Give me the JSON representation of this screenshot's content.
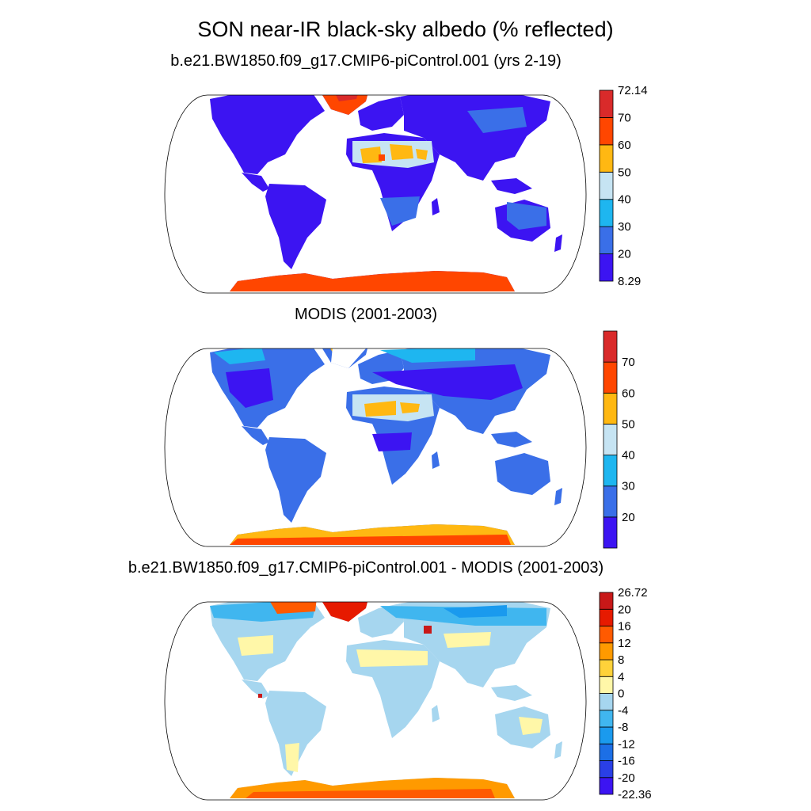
{
  "figure": {
    "title": "SON near-IR black-sky albedo (% reflected)"
  },
  "panels": [
    {
      "title": "b.e21.BW1850.f09_g17.CMIP6-piControl.001 (yrs 2-19)",
      "colorbar": {
        "colors": [
          "#3c14f2",
          "#3a6fe8",
          "#1eb6f0",
          "#c6e4f3",
          "#ffb812",
          "#ff4600",
          "#d92a2a"
        ],
        "labels": [
          "8.29",
          "20",
          "30",
          "40",
          "50",
          "60",
          "70",
          "72.14"
        ],
        "min_label": "8.29",
        "max_label": "72.14"
      }
    },
    {
      "title": "MODIS (2001-2003)",
      "colorbar": {
        "colors": [
          "#3c14f2",
          "#3a6fe8",
          "#1eb6f0",
          "#c6e4f3",
          "#ffb812",
          "#ff4600",
          "#d92a2a"
        ],
        "labels": [
          "20",
          "30",
          "40",
          "50",
          "60",
          "70"
        ]
      }
    },
    {
      "title": "b.e21.BW1850.f09_g17.CMIP6-piControl.001 - MODIS (2001-2003)",
      "colorbar": {
        "colors": [
          "#3c14f2",
          "#2a3fe6",
          "#1c6fe6",
          "#1a9aee",
          "#40b6ef",
          "#a6d6ef",
          "#fff7a8",
          "#ffd23a",
          "#ff9a00",
          "#ff5a00",
          "#e61a00",
          "#c81818"
        ],
        "labels": [
          "-22.36",
          "-20",
          "-16",
          "-12",
          "-8",
          "-4",
          "0",
          "4",
          "8",
          "12",
          "16",
          "20",
          "26.72"
        ]
      }
    }
  ]
}
